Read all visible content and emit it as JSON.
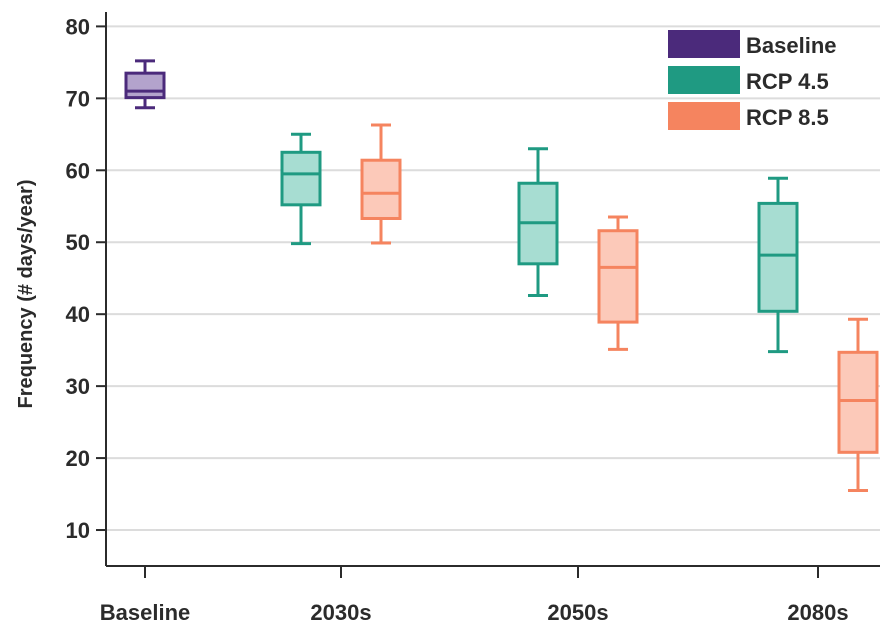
{
  "chart_data": {
    "type": "box",
    "ylabel": "Frequency (# days/year)",
    "xlabel": "",
    "ylim": [
      5,
      82
    ],
    "yticks": [
      10,
      20,
      30,
      40,
      50,
      60,
      70,
      80
    ],
    "categories": [
      "Baseline",
      "2030s",
      "2050s",
      "2080s"
    ],
    "grid": "horizontal",
    "legend_position": "top-right",
    "series": [
      {
        "name": "Baseline",
        "color": "#4b2a7b",
        "fill": "#b3a3cc",
        "boxes": [
          {
            "category": "Baseline",
            "min": 68.7,
            "q1": 70.1,
            "median": 71.0,
            "q3": 73.5,
            "max": 75.2
          }
        ]
      },
      {
        "name": "RCP 4.5",
        "color": "#1f9a82",
        "fill": "#a7ddd2",
        "boxes": [
          {
            "category": "2030s",
            "min": 49.8,
            "q1": 55.2,
            "median": 59.5,
            "q3": 62.5,
            "max": 65.0
          },
          {
            "category": "2050s",
            "min": 42.6,
            "q1": 47.0,
            "median": 52.7,
            "q3": 58.2,
            "max": 63.0
          },
          {
            "category": "2080s",
            "min": 34.8,
            "q1": 40.4,
            "median": 48.2,
            "q3": 55.4,
            "max": 58.9
          }
        ]
      },
      {
        "name": "RCP 8.5",
        "color": "#f5845f",
        "fill": "#fcc9b9",
        "boxes": [
          {
            "category": "2030s",
            "min": 49.9,
            "q1": 53.3,
            "median": 56.8,
            "q3": 61.4,
            "max": 66.3
          },
          {
            "category": "2050s",
            "min": 35.1,
            "q1": 38.9,
            "median": 46.5,
            "q3": 51.6,
            "max": 53.5
          },
          {
            "category": "2080s",
            "min": 15.5,
            "q1": 20.8,
            "median": 28.0,
            "q3": 34.7,
            "max": 39.3
          }
        ]
      }
    ]
  }
}
